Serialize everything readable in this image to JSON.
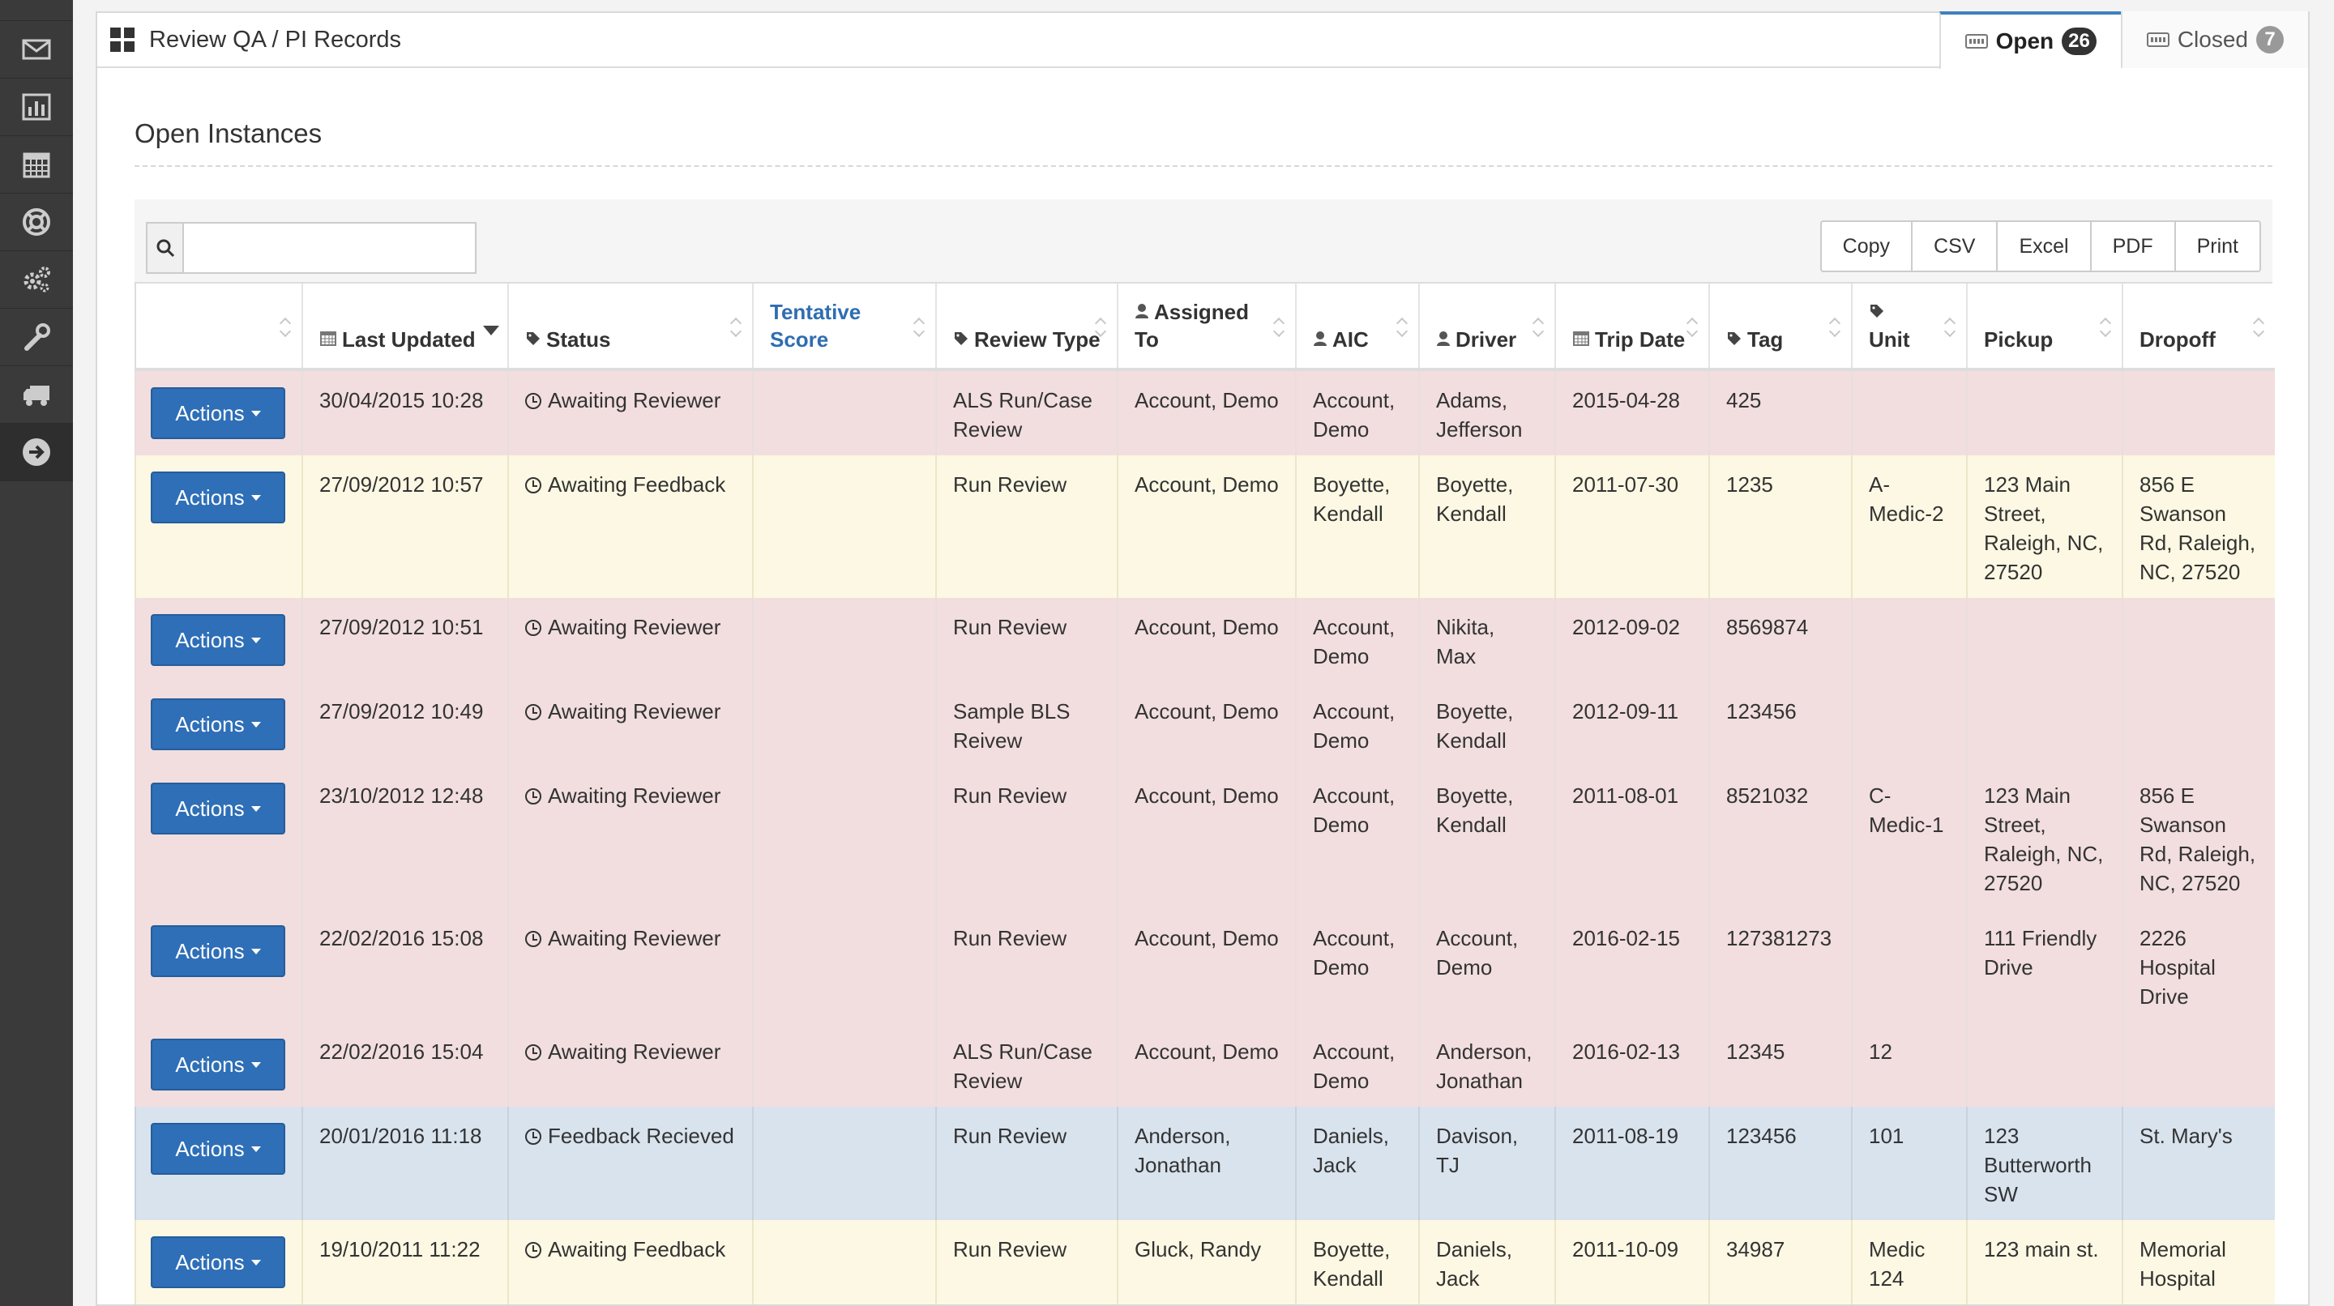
{
  "sidebar": {
    "icons": [
      "list-icon",
      "envelope-icon",
      "bar-chart-icon",
      "calendar-icon",
      "life-ring-icon",
      "cogs-icon",
      "wrench-icon",
      "truck-icon",
      "arrow-circle-right-icon"
    ]
  },
  "header": {
    "title": "Review QA / PI Records",
    "tabs": [
      {
        "label": "Open",
        "count": "26"
      },
      {
        "label": "Closed",
        "count": "7"
      }
    ]
  },
  "section": {
    "title": "Open Instances"
  },
  "toolbar": {
    "search_placeholder": "",
    "search_value": "",
    "export_buttons": [
      "Copy",
      "CSV",
      "Excel",
      "PDF",
      "Print"
    ]
  },
  "table": {
    "columns": [
      {
        "label": ""
      },
      {
        "label": "Last Updated"
      },
      {
        "label": "Status"
      },
      {
        "label": "Tentative Score"
      },
      {
        "label": "Review Type"
      },
      {
        "label": "Assigned To"
      },
      {
        "label": "AIC"
      },
      {
        "label": "Driver"
      },
      {
        "label": "Trip Date"
      },
      {
        "label": "Tag"
      },
      {
        "label": "Unit"
      },
      {
        "label": "Pickup"
      },
      {
        "label": "Dropoff"
      }
    ],
    "action_label": "Actions",
    "rows": [
      {
        "color": "red",
        "cells": [
          "30/04/2015 10:28",
          "Awaiting Reviewer",
          "",
          "ALS Run/Case Review",
          "Account, Demo",
          "Account, Demo",
          "Adams, Jefferson",
          "2015-04-28",
          "425",
          "",
          "",
          ""
        ]
      },
      {
        "color": "yellow",
        "cells": [
          "27/09/2012 10:57",
          "Awaiting Feedback",
          "",
          "Run Review",
          "Account, Demo",
          "Boyette, Kendall",
          "Boyette, Kendall",
          "2011-07-30",
          "1235",
          "A-Medic-2",
          "123 Main Street, Raleigh, NC, 27520",
          "856 E Swanson Rd, Raleigh, NC, 27520"
        ]
      },
      {
        "color": "red",
        "cells": [
          "27/09/2012 10:51",
          "Awaiting Reviewer",
          "",
          "Run Review",
          "Account, Demo",
          "Account, Demo",
          "Nikita, Max",
          "2012-09-02",
          "8569874",
          "",
          "",
          ""
        ]
      },
      {
        "color": "red",
        "cells": [
          "27/09/2012 10:49",
          "Awaiting Reviewer",
          "",
          "Sample BLS Reivew",
          "Account, Demo",
          "Account, Demo",
          "Boyette, Kendall",
          "2012-09-11",
          "123456",
          "",
          "",
          ""
        ]
      },
      {
        "color": "red",
        "cells": [
          "23/10/2012 12:48",
          "Awaiting Reviewer",
          "",
          "Run Review",
          "Account, Demo",
          "Account, Demo",
          "Boyette, Kendall",
          "2011-08-01",
          "8521032",
          "C-Medic-1",
          "123 Main Street, Raleigh, NC, 27520",
          "856 E Swanson Rd, Raleigh, NC, 27520"
        ]
      },
      {
        "color": "red",
        "cells": [
          "22/02/2016 15:08",
          "Awaiting Reviewer",
          "",
          "Run Review",
          "Account, Demo",
          "Account, Demo",
          "Account, Demo",
          "2016-02-15",
          "127381273",
          "",
          "111 Friendly Drive",
          "2226 Hospital Drive"
        ]
      },
      {
        "color": "red",
        "cells": [
          "22/02/2016 15:04",
          "Awaiting Reviewer",
          "",
          "ALS Run/Case Review",
          "Account, Demo",
          "Account, Demo",
          "Anderson, Jonathan",
          "2016-02-13",
          "12345",
          "12",
          "",
          ""
        ]
      },
      {
        "color": "blue",
        "cells": [
          "20/01/2016 11:18",
          "Feedback Recieved",
          "",
          "Run Review",
          "Anderson, Jonathan",
          "Daniels, Jack",
          "Davison, TJ",
          "2011-08-19",
          "123456",
          "101",
          "123 Butterworth SW",
          "St. Mary's"
        ]
      },
      {
        "color": "yellow",
        "cells": [
          "19/10/2011 11:22",
          "Awaiting Feedback",
          "",
          "Run Review",
          "Gluck, Randy",
          "Boyette, Kendall",
          "Daniels, Jack",
          "2011-10-09",
          "34987",
          "Medic 124",
          "123 main st.",
          "Memorial Hospital"
        ]
      }
    ]
  },
  "colors": {
    "primary": "#2e6fb7",
    "row_danger": "#f2dede",
    "row_warning": "#fcf8e3",
    "row_info": "#d9e3ee",
    "sidebar": "#3a3a3a"
  }
}
